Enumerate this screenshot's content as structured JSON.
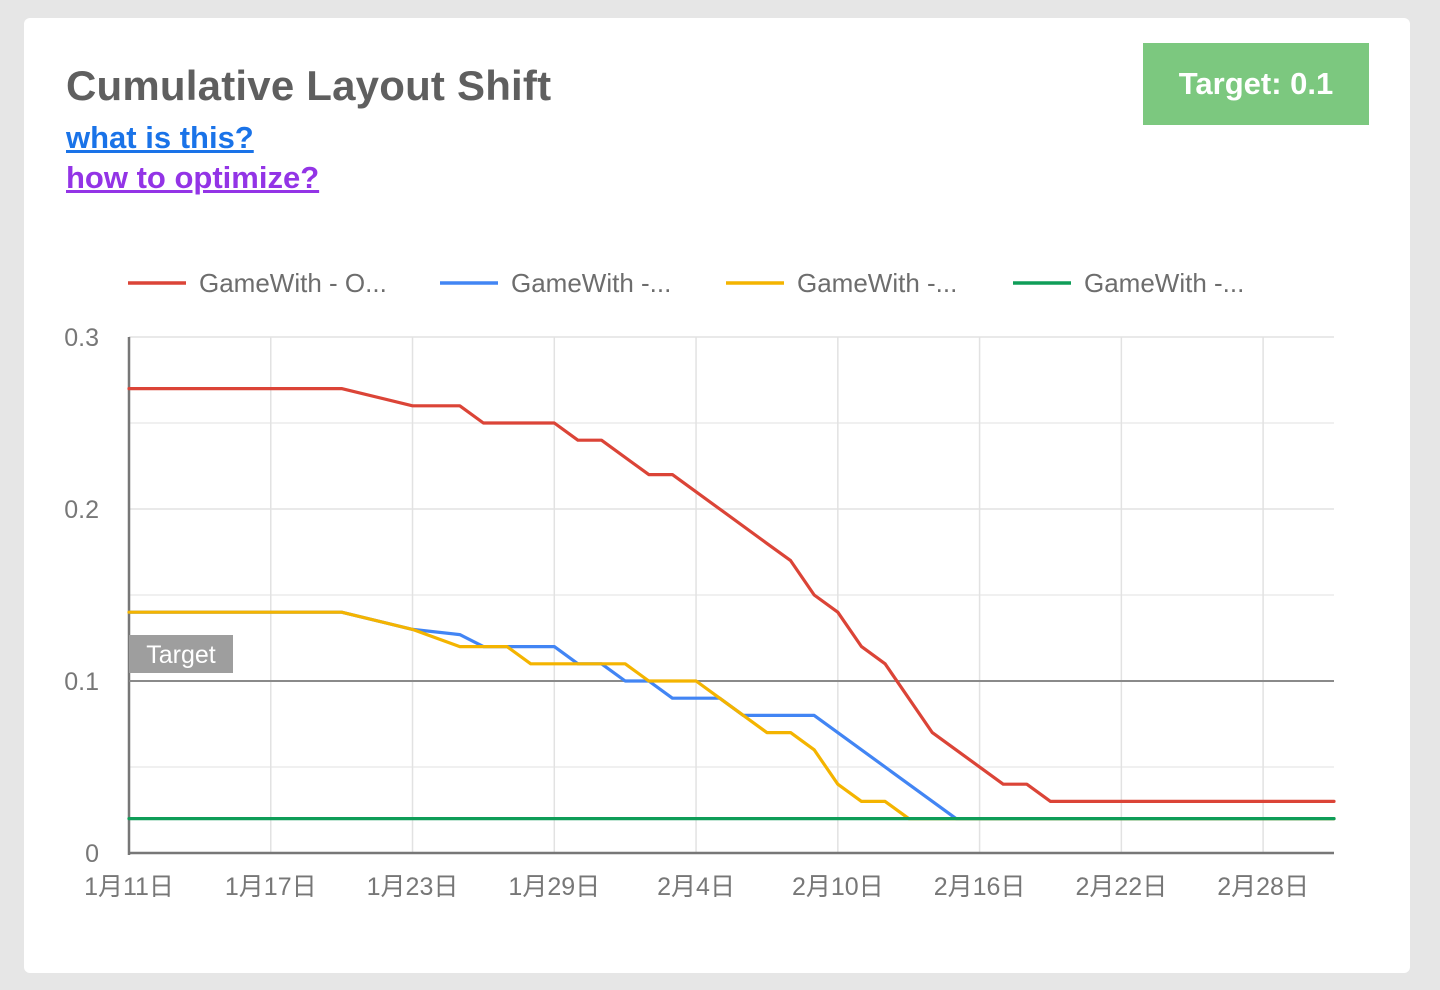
{
  "card": {
    "title": "Cumulative Layout Shift",
    "links": {
      "what_is_this": "what is this?",
      "how_to_optimize": "how to optimize?"
    },
    "target_badge": "Target: 0.1",
    "badge_color": "#7cc87f"
  },
  "chart_data": {
    "type": "line",
    "ylim": [
      0,
      0.3
    ],
    "yticks": [
      {
        "value": 0,
        "label": "0"
      },
      {
        "value": 0.1,
        "label": "0.1"
      },
      {
        "value": 0.2,
        "label": "0.2"
      },
      {
        "value": 0.3,
        "label": "0.3"
      }
    ],
    "minor_y_gridlines": [
      0.05,
      0.15,
      0.25
    ],
    "xlim": [
      1,
      52
    ],
    "x_unit": "day (1 = 1月11日)",
    "xticks": [
      {
        "value": 1,
        "label": "1月11日"
      },
      {
        "value": 7,
        "label": "1月17日"
      },
      {
        "value": 13,
        "label": "1月23日"
      },
      {
        "value": 19,
        "label": "1月29日"
      },
      {
        "value": 25,
        "label": "2月4日"
      },
      {
        "value": 31,
        "label": "2月10日"
      },
      {
        "value": 37,
        "label": "2月16日"
      },
      {
        "value": 43,
        "label": "2月22日"
      },
      {
        "value": 49,
        "label": "2月28日"
      }
    ],
    "grid": true,
    "legend_position": "top",
    "target_line": {
      "value": 0.1,
      "label": "Target"
    },
    "series": [
      {
        "name": "GameWith - O...",
        "color": "#db4437",
        "points": [
          [
            1,
            0.27
          ],
          [
            10,
            0.27
          ],
          [
            13,
            0.26
          ],
          [
            15,
            0.26
          ],
          [
            16,
            0.25
          ],
          [
            19,
            0.25
          ],
          [
            20,
            0.24
          ],
          [
            21,
            0.24
          ],
          [
            23,
            0.22
          ],
          [
            24,
            0.22
          ],
          [
            26,
            0.2
          ],
          [
            28,
            0.18
          ],
          [
            29,
            0.17
          ],
          [
            30,
            0.15
          ],
          [
            31,
            0.14
          ],
          [
            32,
            0.12
          ],
          [
            33,
            0.11
          ],
          [
            35,
            0.07
          ],
          [
            36,
            0.06
          ],
          [
            38,
            0.04
          ],
          [
            39,
            0.04
          ],
          [
            40,
            0.03
          ],
          [
            52,
            0.03
          ]
        ]
      },
      {
        "name": "GameWith -...",
        "color": "#4285f4",
        "points": [
          [
            1,
            0.14
          ],
          [
            10,
            0.14
          ],
          [
            13,
            0.13
          ],
          [
            15,
            0.127
          ],
          [
            16,
            0.12
          ],
          [
            19,
            0.12
          ],
          [
            20,
            0.11
          ],
          [
            21,
            0.11
          ],
          [
            22,
            0.1
          ],
          [
            23,
            0.1
          ],
          [
            24,
            0.09
          ],
          [
            26,
            0.09
          ],
          [
            27,
            0.08
          ],
          [
            30,
            0.08
          ],
          [
            36,
            0.02
          ],
          [
            52,
            0.02
          ]
        ]
      },
      {
        "name": "GameWith -...",
        "color": "#f4b400",
        "points": [
          [
            1,
            0.14
          ],
          [
            10,
            0.14
          ],
          [
            13,
            0.13
          ],
          [
            15,
            0.12
          ],
          [
            17,
            0.12
          ],
          [
            18,
            0.11
          ],
          [
            20,
            0.11
          ],
          [
            22,
            0.11
          ],
          [
            23,
            0.1
          ],
          [
            25,
            0.1
          ],
          [
            26,
            0.09
          ],
          [
            28,
            0.07
          ],
          [
            29,
            0.07
          ],
          [
            30,
            0.06
          ],
          [
            31,
            0.04
          ],
          [
            32,
            0.03
          ],
          [
            33,
            0.03
          ],
          [
            34,
            0.02
          ],
          [
            52,
            0.02
          ]
        ]
      },
      {
        "name": "GameWith -...",
        "color": "#0f9d58",
        "points": [
          [
            1,
            0.02
          ],
          [
            52,
            0.02
          ]
        ]
      }
    ]
  }
}
